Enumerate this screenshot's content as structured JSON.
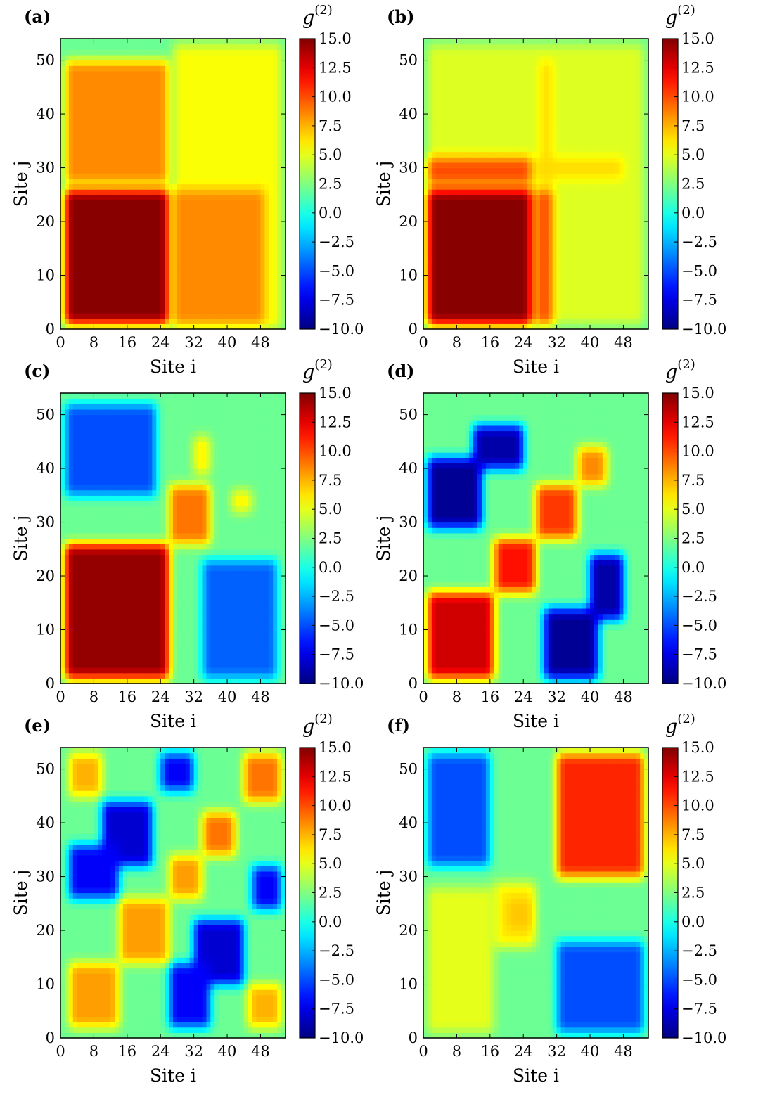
{
  "chart_data": [
    {
      "type": "heatmap",
      "panel_label": "(a)",
      "xlabel": "Site i",
      "ylabel": "Site j",
      "xticks": [
        0,
        8,
        16,
        24,
        32,
        40,
        48
      ],
      "yticks": [
        0,
        10,
        20,
        30,
        40,
        50
      ],
      "xlim": [
        0,
        54
      ],
      "ylim": [
        0,
        54
      ],
      "colorbar": {
        "title": "g(2)",
        "ticks": [
          15.0,
          12.5,
          10.0,
          7.5,
          5.0,
          2.5,
          0.0,
          -2.5,
          -5.0,
          -7.5,
          -10.0
        ],
        "vmin": -10,
        "vmax": 15,
        "colormap": "jet"
      },
      "background": 2.0,
      "regions": [
        {
          "x": [
            1,
            26
          ],
          "y": [
            27,
            50
          ],
          "value": 8.5
        },
        {
          "x": [
            27,
            53
          ],
          "y": [
            0,
            53
          ],
          "value": 5.5
        },
        {
          "x": [
            1,
            26
          ],
          "y": [
            1,
            26
          ],
          "value": 14.8
        },
        {
          "x": [
            27,
            49
          ],
          "y": [
            1,
            26
          ],
          "value": 8.5
        }
      ]
    },
    {
      "type": "heatmap",
      "panel_label": "(b)",
      "xlabel": "Site i",
      "ylabel": "Site j",
      "xticks": [
        0,
        8,
        16,
        24,
        32,
        40,
        48
      ],
      "yticks": [
        0,
        10,
        20,
        30,
        40,
        50
      ],
      "xlim": [
        0,
        54
      ],
      "ylim": [
        0,
        54
      ],
      "colorbar": {
        "title": "g(2)",
        "ticks": [
          15.0,
          12.5,
          10.0,
          7.5,
          5.0,
          2.5,
          0.0,
          -2.5,
          -5.0,
          -7.5,
          -10.0
        ],
        "vmin": -10,
        "vmax": 15,
        "colormap": "jet"
      },
      "background": 2.0,
      "regions": [
        {
          "x": [
            1,
            53
          ],
          "y": [
            1,
            53
          ],
          "value": 4.8
        },
        {
          "x": [
            28,
            31
          ],
          "y": [
            27,
            50
          ],
          "value": 6.5
        },
        {
          "x": [
            27,
            48
          ],
          "y": [
            28,
            32
          ],
          "value": 6.5
        },
        {
          "x": [
            1,
            26
          ],
          "y": [
            27,
            32
          ],
          "value": 10.0
        },
        {
          "x": [
            27,
            31
          ],
          "y": [
            1,
            26
          ],
          "value": 10.0
        },
        {
          "x": [
            1,
            26
          ],
          "y": [
            1,
            26
          ],
          "value": 14.8
        }
      ]
    },
    {
      "type": "heatmap",
      "panel_label": "(c)",
      "xlabel": "Site i",
      "ylabel": "Site j",
      "xticks": [
        0,
        8,
        16,
        24,
        32,
        40,
        48
      ],
      "yticks": [
        0,
        10,
        20,
        30,
        40,
        50
      ],
      "xlim": [
        0,
        54
      ],
      "ylim": [
        0,
        54
      ],
      "colorbar": {
        "title": "g(2)",
        "ticks": [
          15.0,
          12.5,
          10.0,
          7.5,
          5.0,
          2.5,
          0.0,
          -2.5,
          -5.0,
          -7.5,
          -10.0
        ],
        "vmin": -10,
        "vmax": 15,
        "colormap": "jet"
      },
      "background": 2.0,
      "regions": [
        {
          "x": [
            1,
            23
          ],
          "y": [
            35,
            52
          ],
          "value": -5.0
        },
        {
          "x": [
            34,
            52
          ],
          "y": [
            1,
            23
          ],
          "value": -4.5
        },
        {
          "x": [
            1,
            26
          ],
          "y": [
            1,
            26
          ],
          "value": 14.5
        },
        {
          "x": [
            26,
            36
          ],
          "y": [
            26,
            37
          ],
          "value": 9.0
        },
        {
          "x": [
            32,
            36
          ],
          "y": [
            39,
            46
          ],
          "value": 6.0
        },
        {
          "x": [
            41,
            46
          ],
          "y": [
            32,
            36
          ],
          "value": 6.0
        }
      ]
    },
    {
      "type": "heatmap",
      "panel_label": "(d)",
      "xlabel": "Site i",
      "ylabel": "Site j",
      "xticks": [
        0,
        8,
        16,
        24,
        32,
        40,
        48
      ],
      "yticks": [
        0,
        10,
        20,
        30,
        40,
        50
      ],
      "xlim": [
        0,
        54
      ],
      "ylim": [
        0,
        54
      ],
      "colorbar": {
        "title": "g(2)",
        "ticks": [
          15.0,
          12.5,
          10.0,
          7.5,
          5.0,
          2.5,
          0.0,
          -2.5,
          -5.0,
          -7.5,
          -10.0
        ],
        "vmin": -10,
        "vmax": 15,
        "colormap": "jet"
      },
      "background": 2.0,
      "regions": [
        {
          "x": [
            1,
            14
          ],
          "y": [
            29,
            42
          ],
          "value": -9.5
        },
        {
          "x": [
            12,
            24
          ],
          "y": [
            40,
            48
          ],
          "value": -9.0
        },
        {
          "x": [
            29,
            42
          ],
          "y": [
            1,
            14
          ],
          "value": -9.5
        },
        {
          "x": [
            40,
            48
          ],
          "y": [
            12,
            24
          ],
          "value": -9.0
        },
        {
          "x": [
            1,
            17
          ],
          "y": [
            1,
            17
          ],
          "value": 13.0
        },
        {
          "x": [
            17,
            27
          ],
          "y": [
            17,
            27
          ],
          "value": 11.5
        },
        {
          "x": [
            27,
            37
          ],
          "y": [
            27,
            37
          ],
          "value": 10.5
        },
        {
          "x": [
            37,
            44
          ],
          "y": [
            37,
            44
          ],
          "value": 8.5
        }
      ]
    },
    {
      "type": "heatmap",
      "panel_label": "(e)",
      "xlabel": "Site i",
      "ylabel": "Site j",
      "xticks": [
        0,
        8,
        16,
        24,
        32,
        40,
        48
      ],
      "yticks": [
        0,
        10,
        20,
        30,
        40,
        50
      ],
      "xlim": [
        0,
        54
      ],
      "ylim": [
        0,
        54
      ],
      "colorbar": {
        "title": "g(2)",
        "ticks": [
          15.0,
          12.5,
          10.0,
          7.5,
          5.0,
          2.5,
          0.0,
          -2.5,
          -5.0,
          -7.5,
          -10.0
        ],
        "vmin": -10,
        "vmax": 15,
        "colormap": "jet"
      },
      "background": 2.0,
      "regions": [
        {
          "x": [
            2,
            10
          ],
          "y": [
            45,
            53
          ],
          "value": 7.5
        },
        {
          "x": [
            45,
            53
          ],
          "y": [
            2,
            10
          ],
          "value": 7.5
        },
        {
          "x": [
            44,
            53
          ],
          "y": [
            44,
            53
          ],
          "value": 9.0
        },
        {
          "x": [
            24,
            32
          ],
          "y": [
            46,
            53
          ],
          "value": -7.0
        },
        {
          "x": [
            10,
            22
          ],
          "y": [
            32,
            44
          ],
          "value": -8.0
        },
        {
          "x": [
            2,
            14
          ],
          "y": [
            26,
            36
          ],
          "value": -7.0
        },
        {
          "x": [
            46,
            53
          ],
          "y": [
            24,
            32
          ],
          "value": -7.0
        },
        {
          "x": [
            32,
            44
          ],
          "y": [
            10,
            22
          ],
          "value": -8.0
        },
        {
          "x": [
            26,
            36
          ],
          "y": [
            2,
            14
          ],
          "value": -7.0
        },
        {
          "x": [
            2,
            14
          ],
          "y": [
            2,
            14
          ],
          "value": 8.0
        },
        {
          "x": [
            14,
            26
          ],
          "y": [
            14,
            26
          ],
          "value": 8.0
        },
        {
          "x": [
            26,
            34
          ],
          "y": [
            26,
            34
          ],
          "value": 8.0
        },
        {
          "x": [
            34,
            42
          ],
          "y": [
            34,
            42
          ],
          "value": 9.0
        }
      ]
    },
    {
      "type": "heatmap",
      "panel_label": "(f)",
      "xlabel": "Site i",
      "ylabel": "Site j",
      "xticks": [
        0,
        8,
        16,
        24,
        32,
        40,
        48
      ],
      "yticks": [
        0,
        10,
        20,
        30,
        40,
        50
      ],
      "xlim": [
        0,
        54
      ],
      "ylim": [
        0,
        54
      ],
      "colorbar": {
        "title": "g(2)",
        "ticks": [
          15.0,
          12.5,
          10.0,
          7.5,
          5.0,
          2.5,
          0.0,
          -2.5,
          -5.0,
          -7.5,
          -10.0
        ],
        "vmin": -10,
        "vmax": 15,
        "colormap": "jet"
      },
      "background": 2.0,
      "regions": [
        {
          "x": [
            1,
            17
          ],
          "y": [
            1,
            28
          ],
          "value": 5.0
        },
        {
          "x": [
            17,
            27
          ],
          "y": [
            17,
            29
          ],
          "value": 6.0
        },
        {
          "x": [
            20,
            26
          ],
          "y": [
            20,
            26
          ],
          "value": 7.0
        },
        {
          "x": [
            1,
            16
          ],
          "y": [
            32,
            53
          ],
          "value": -5.0
        },
        {
          "x": [
            32,
            53
          ],
          "y": [
            1,
            18
          ],
          "value": -5.0
        },
        {
          "x": [
            32,
            53
          ],
          "y": [
            30,
            53
          ],
          "value": 11.0
        }
      ]
    }
  ]
}
